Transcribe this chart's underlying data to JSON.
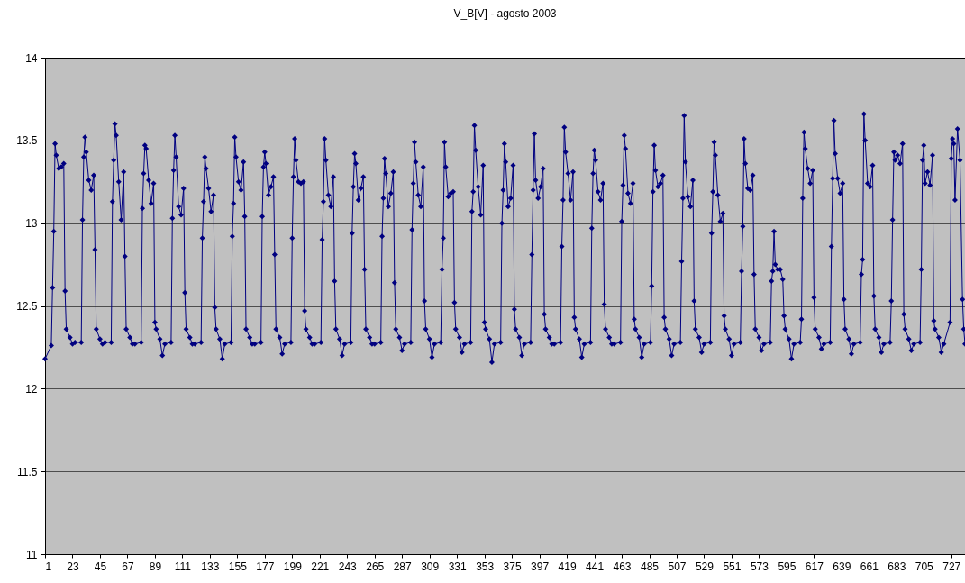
{
  "chart_data": {
    "type": "line",
    "title": "V_B[V] - agosto 2003",
    "x": [
      1,
      6,
      7,
      8,
      9,
      10,
      12,
      14,
      16,
      17,
      18,
      21,
      23,
      25,
      30,
      31,
      32,
      33,
      34,
      36,
      38,
      40,
      41,
      42,
      45,
      47,
      49,
      54,
      55,
      56,
      57,
      58,
      60,
      62,
      64,
      65,
      66,
      69,
      71,
      73,
      78,
      79,
      80,
      81,
      82,
      84,
      86,
      88,
      89,
      90,
      93,
      95,
      97,
      102,
      103,
      104,
      105,
      106,
      108,
      110,
      112,
      113,
      114,
      117,
      119,
      121,
      126,
      127,
      128,
      129,
      130,
      132,
      134,
      136,
      137,
      138,
      141,
      143,
      145,
      150,
      151,
      152,
      153,
      154,
      156,
      158,
      160,
      161,
      162,
      165,
      167,
      169,
      174,
      175,
      176,
      177,
      178,
      180,
      182,
      184,
      185,
      186,
      189,
      191,
      193,
      198,
      199,
      200,
      201,
      202,
      204,
      206,
      208,
      209,
      210,
      213,
      215,
      217,
      222,
      223,
      224,
      225,
      226,
      228,
      230,
      232,
      233,
      234,
      237,
      239,
      241,
      246,
      247,
      248,
      249,
      250,
      252,
      254,
      256,
      257,
      258,
      261,
      263,
      265,
      270,
      271,
      272,
      273,
      274,
      276,
      278,
      280,
      281,
      282,
      285,
      287,
      289,
      294,
      295,
      296,
      297,
      298,
      300,
      302,
      304,
      305,
      306,
      309,
      311,
      313,
      318,
      319,
      320,
      321,
      322,
      324,
      326,
      328,
      329,
      330,
      333,
      335,
      337,
      342,
      343,
      344,
      345,
      346,
      348,
      350,
      352,
      353,
      354,
      357,
      359,
      361,
      366,
      367,
      368,
      369,
      370,
      372,
      374,
      376,
      377,
      378,
      381,
      383,
      385,
      390,
      391,
      392,
      393,
      394,
      396,
      398,
      400,
      401,
      402,
      405,
      407,
      409,
      414,
      415,
      416,
      417,
      418,
      420,
      422,
      424,
      425,
      426,
      429,
      431,
      433,
      438,
      439,
      440,
      441,
      442,
      444,
      446,
      448,
      449,
      450,
      453,
      455,
      457,
      462,
      463,
      464,
      465,
      466,
      468,
      470,
      472,
      473,
      474,
      477,
      479,
      481,
      486,
      487,
      488,
      489,
      490,
      492,
      494,
      496,
      497,
      498,
      501,
      503,
      505,
      510,
      511,
      512,
      513,
      514,
      516,
      518,
      520,
      521,
      522,
      525,
      527,
      529,
      534,
      535,
      536,
      537,
      538,
      540,
      542,
      544,
      545,
      546,
      549,
      551,
      553,
      558,
      559,
      560,
      561,
      562,
      564,
      566,
      568,
      569,
      570,
      573,
      575,
      577,
      582,
      583,
      584,
      585,
      586,
      588,
      590,
      592,
      593,
      594,
      597,
      599,
      601,
      606,
      607,
      608,
      609,
      610,
      612,
      614,
      616,
      617,
      618,
      621,
      623,
      625,
      630,
      631,
      632,
      633,
      634,
      636,
      638,
      640,
      641,
      642,
      645,
      647,
      649,
      654,
      655,
      656,
      657,
      658,
      660,
      662,
      664,
      665,
      666,
      669,
      671,
      673,
      678,
      679,
      680,
      681,
      682,
      684,
      686,
      688,
      689,
      690,
      693,
      695,
      697,
      702,
      703,
      704,
      705,
      706,
      708,
      710,
      712,
      713,
      714,
      717,
      719,
      721,
      726,
      727,
      728,
      729,
      730,
      732,
      734,
      736,
      737,
      738
    ],
    "series": [
      {
        "color": "#000080",
        "values": [
          12.18,
          12.26,
          12.61,
          12.95,
          13.48,
          13.41,
          13.33,
          13.34,
          13.36,
          12.59,
          12.36,
          12.31,
          12.27,
          12.28,
          12.28,
          13.02,
          13.4,
          13.52,
          13.43,
          13.26,
          13.2,
          13.29,
          12.84,
          12.36,
          12.3,
          12.27,
          12.28,
          12.28,
          13.13,
          13.38,
          13.6,
          13.53,
          13.25,
          13.02,
          13.31,
          12.8,
          12.36,
          12.31,
          12.27,
          12.27,
          12.28,
          13.09,
          13.3,
          13.47,
          13.45,
          13.26,
          13.12,
          13.24,
          12.4,
          12.36,
          12.3,
          12.2,
          12.27,
          12.28,
          13.03,
          13.32,
          13.53,
          13.4,
          13.1,
          13.05,
          13.21,
          12.58,
          12.36,
          12.31,
          12.27,
          12.27,
          12.28,
          12.91,
          13.13,
          13.4,
          13.33,
          13.21,
          13.07,
          13.17,
          12.49,
          12.36,
          12.3,
          12.18,
          12.27,
          12.28,
          12.92,
          13.12,
          13.52,
          13.4,
          13.25,
          13.2,
          13.37,
          13.04,
          12.36,
          12.31,
          12.27,
          12.27,
          12.28,
          13.04,
          13.34,
          13.43,
          13.36,
          13.17,
          13.22,
          13.28,
          12.81,
          12.36,
          12.31,
          12.21,
          12.27,
          12.28,
          12.91,
          13.28,
          13.51,
          13.38,
          13.25,
          13.24,
          13.25,
          12.47,
          12.36,
          12.31,
          12.27,
          12.27,
          12.28,
          12.9,
          13.13,
          13.51,
          13.38,
          13.17,
          13.1,
          13.28,
          12.65,
          12.36,
          12.3,
          12.2,
          12.27,
          12.28,
          12.94,
          13.22,
          13.42,
          13.36,
          13.14,
          13.21,
          13.28,
          12.72,
          12.36,
          12.31,
          12.27,
          12.27,
          12.28,
          12.92,
          13.15,
          13.39,
          13.3,
          13.1,
          13.18,
          13.31,
          12.64,
          12.36,
          12.31,
          12.23,
          12.27,
          12.28,
          12.96,
          13.24,
          13.49,
          13.37,
          13.17,
          13.1,
          13.34,
          12.53,
          12.36,
          12.3,
          12.19,
          12.27,
          12.28,
          12.72,
          12.91,
          13.49,
          13.34,
          13.16,
          13.18,
          13.19,
          12.52,
          12.36,
          12.31,
          12.22,
          12.27,
          12.28,
          13.07,
          13.19,
          13.59,
          13.44,
          13.22,
          13.05,
          13.35,
          12.4,
          12.36,
          12.3,
          12.16,
          12.27,
          12.28,
          13.0,
          13.2,
          13.48,
          13.37,
          13.1,
          13.15,
          13.35,
          12.48,
          12.36,
          12.31,
          12.2,
          12.27,
          12.28,
          12.81,
          13.2,
          13.54,
          13.26,
          13.15,
          13.22,
          13.33,
          12.45,
          12.36,
          12.31,
          12.27,
          12.27,
          12.28,
          12.86,
          13.14,
          13.58,
          13.43,
          13.3,
          13.14,
          13.31,
          12.43,
          12.36,
          12.3,
          12.19,
          12.27,
          12.28,
          12.97,
          13.3,
          13.44,
          13.38,
          13.19,
          13.14,
          13.24,
          12.51,
          12.36,
          12.31,
          12.27,
          12.27,
          12.28,
          13.01,
          13.23,
          13.53,
          13.45,
          13.18,
          13.12,
          13.24,
          12.42,
          12.36,
          12.31,
          12.19,
          12.27,
          12.28,
          12.62,
          13.19,
          13.47,
          13.32,
          13.22,
          13.24,
          13.29,
          12.43,
          12.36,
          12.3,
          12.2,
          12.27,
          12.28,
          12.77,
          13.15,
          13.65,
          13.37,
          13.16,
          13.1,
          13.26,
          12.53,
          12.36,
          12.31,
          12.22,
          12.27,
          12.28,
          12.94,
          13.19,
          13.49,
          13.41,
          13.17,
          13.01,
          13.06,
          12.44,
          12.36,
          12.3,
          12.2,
          12.27,
          12.28,
          12.71,
          12.98,
          13.51,
          13.36,
          13.21,
          13.2,
          13.29,
          12.69,
          12.36,
          12.31,
          12.23,
          12.27,
          12.28,
          12.65,
          12.71,
          12.95,
          12.75,
          12.72,
          12.72,
          12.66,
          12.44,
          12.36,
          12.3,
          12.18,
          12.27,
          12.28,
          12.42,
          13.15,
          13.55,
          13.45,
          13.33,
          13.24,
          13.32,
          12.55,
          12.36,
          12.31,
          12.24,
          12.27,
          12.28,
          12.86,
          13.27,
          13.62,
          13.42,
          13.27,
          13.18,
          13.24,
          12.54,
          12.36,
          12.3,
          12.21,
          12.27,
          12.28,
          12.69,
          12.78,
          13.66,
          13.5,
          13.24,
          13.22,
          13.35,
          12.56,
          12.36,
          12.31,
          12.22,
          12.27,
          12.28,
          12.53,
          13.02,
          13.43,
          13.38,
          13.41,
          13.36,
          13.48,
          12.45,
          12.36,
          12.3,
          12.23,
          12.27,
          12.28,
          12.72,
          13.38,
          13.47,
          13.24,
          13.31,
          13.23,
          13.41,
          12.41,
          12.36,
          12.31,
          12.22,
          12.27,
          12.4,
          13.39,
          13.51,
          13.48,
          13.14,
          13.57,
          13.38,
          12.54,
          12.36,
          12.27
        ]
      }
    ],
    "xlim": [
      1,
      738
    ],
    "xticks": [
      1,
      23,
      45,
      67,
      89,
      111,
      133,
      155,
      177,
      199,
      221,
      243,
      265,
      287,
      309,
      331,
      353,
      375,
      397,
      419,
      441,
      463,
      485,
      507,
      529,
      551,
      573,
      595,
      617,
      639,
      661,
      683,
      705,
      727
    ],
    "ylim": [
      11,
      14
    ],
    "yticks": [
      11,
      11.5,
      12,
      12.5,
      13,
      13.5,
      14
    ],
    "grid": "y",
    "legend": false,
    "marker": "diamond"
  }
}
